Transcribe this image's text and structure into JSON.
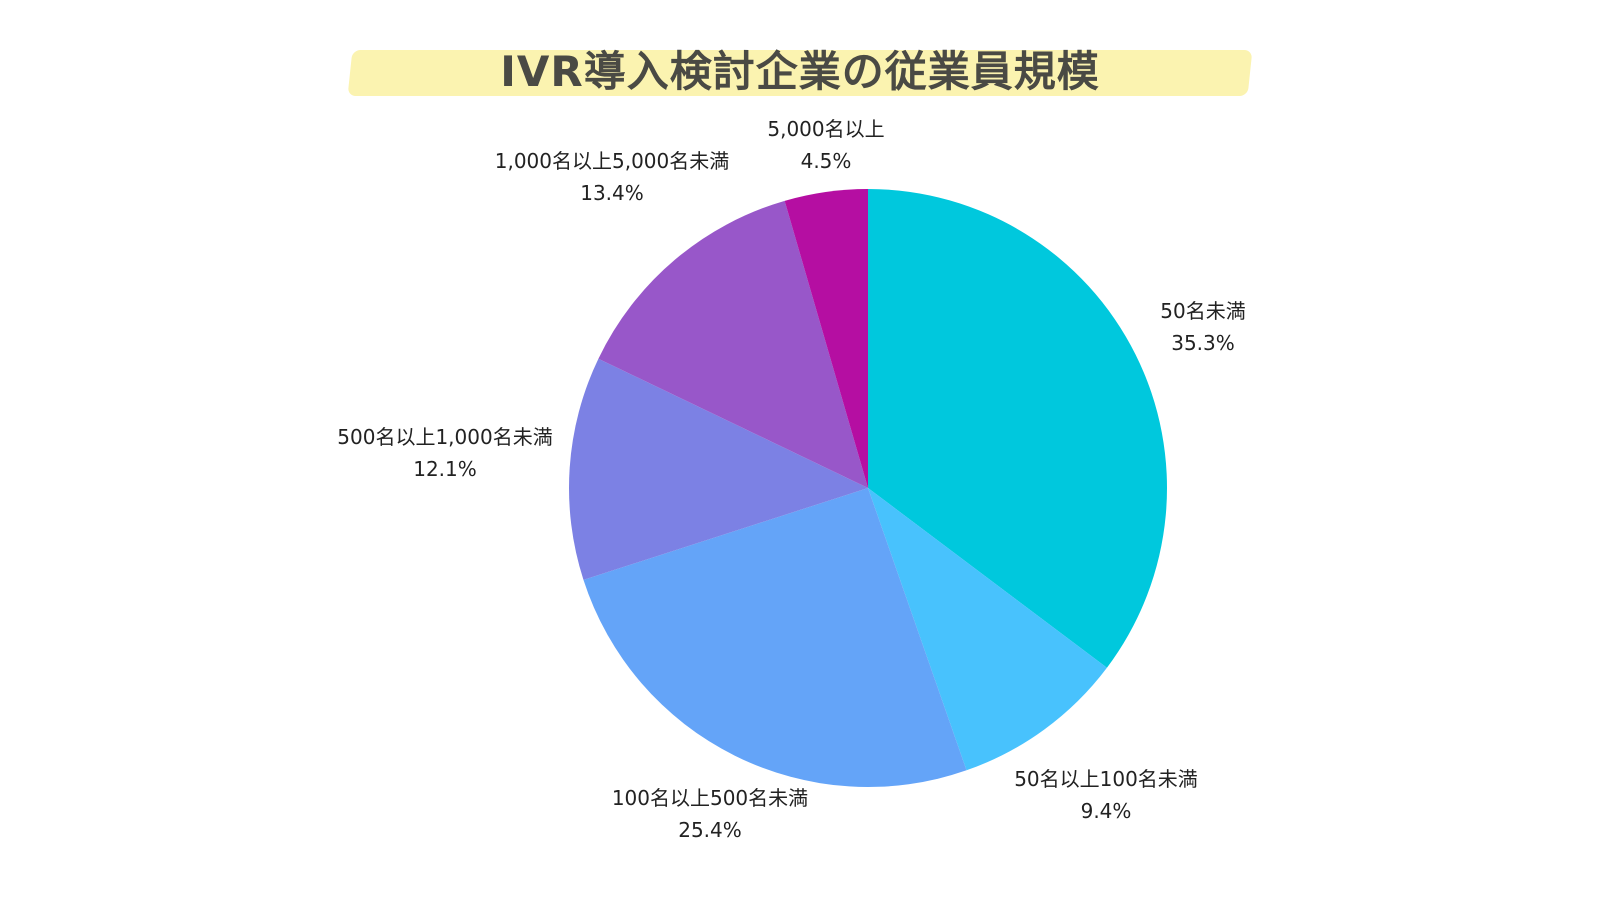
{
  "chart_data": {
    "type": "pie",
    "title": "IVR導入検討企業の従業員規模",
    "slices": [
      {
        "name": "50名未満",
        "value": 35.3,
        "value_label": "35.3%",
        "color": "#00c8dd"
      },
      {
        "name": "50名以上100名未満",
        "value": 9.4,
        "value_label": "9.4%",
        "color": "#48c2fd"
      },
      {
        "name": "100名以上500名未満",
        "value": 25.4,
        "value_label": "25.4%",
        "color": "#64a4f8"
      },
      {
        "name": "500名以上1,000名未満",
        "value": 12.1,
        "value_label": "12.1%",
        "color": "#7c81e4"
      },
      {
        "name": "1,000名以上5,000名未満",
        "value": 13.4,
        "value_label": "13.4%",
        "color": "#9857c9"
      },
      {
        "name": "5,000名以上",
        "value": 4.5,
        "value_label": "4.5%",
        "color": "#b50ea2"
      }
    ]
  }
}
